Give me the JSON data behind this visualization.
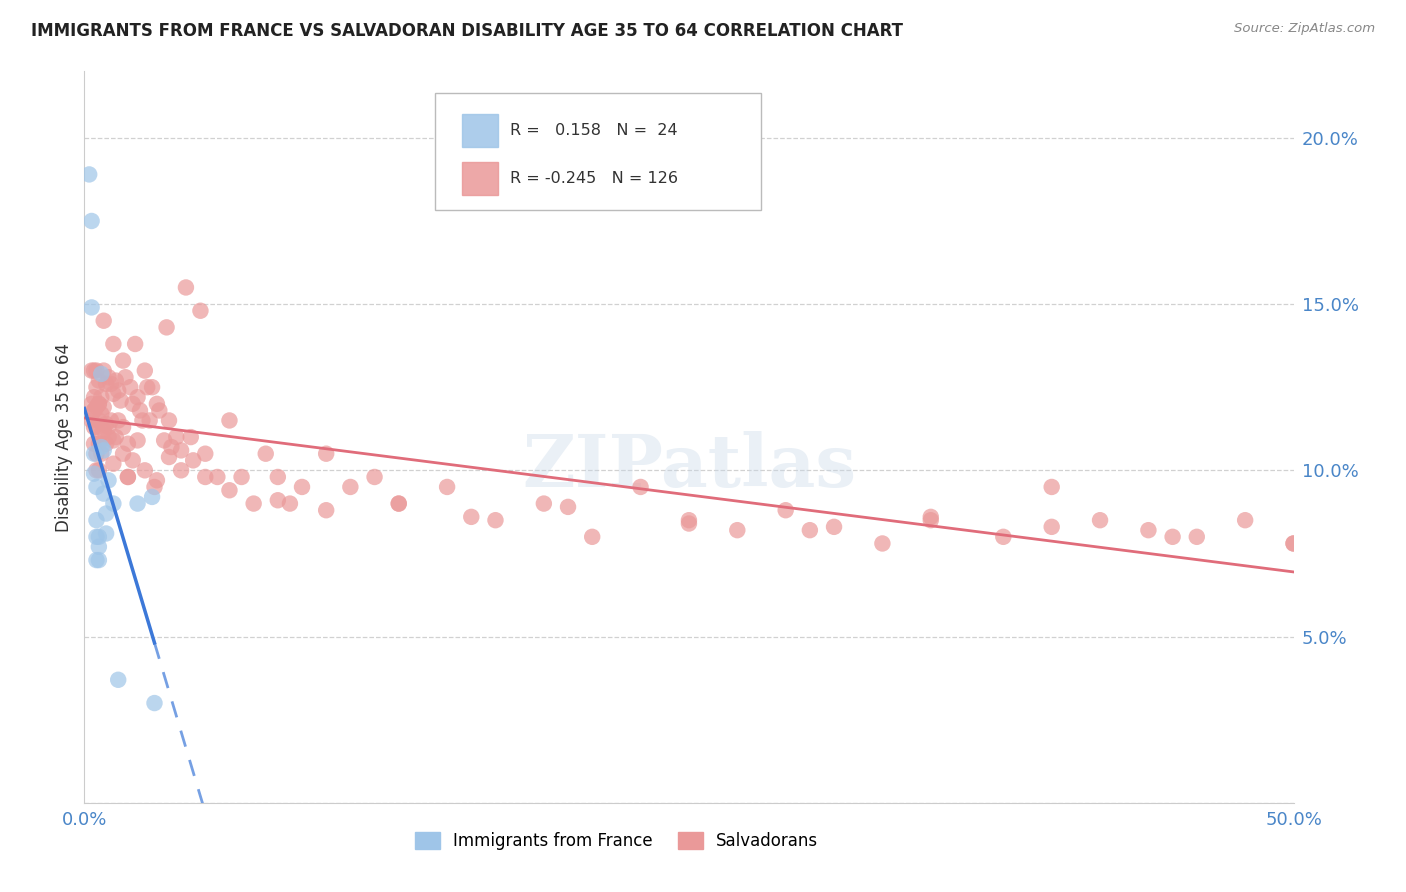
{
  "title": "IMMIGRANTS FROM FRANCE VS SALVADORAN DISABILITY AGE 35 TO 64 CORRELATION CHART",
  "source": "Source: ZipAtlas.com",
  "ylabel": "Disability Age 35 to 64",
  "xmin": 0.0,
  "xmax": 0.5,
  "ymin": 0.0,
  "ymax": 0.22,
  "ytick_vals": [
    0.0,
    0.05,
    0.1,
    0.15,
    0.2
  ],
  "ytick_labels": [
    "",
    "5.0%",
    "10.0%",
    "15.0%",
    "20.0%"
  ],
  "xtick_vals": [
    0.0,
    0.1,
    0.2,
    0.3,
    0.4,
    0.5
  ],
  "xtick_labels": [
    "0.0%",
    "",
    "",
    "",
    "",
    "50.0%"
  ],
  "legend_labels": [
    "Immigrants from France",
    "Salvadorans"
  ],
  "r_france": 0.158,
  "n_france": 24,
  "r_salvadoran": -0.245,
  "n_salvadoran": 126,
  "color_france": "#9fc5e8",
  "color_salvadoran": "#ea9999",
  "color_france_line": "#3c78d8",
  "color_salvadoran_line": "#e06c7a",
  "watermark": "ZIPatlas",
  "france_x": [
    0.002,
    0.003,
    0.003,
    0.004,
    0.004,
    0.005,
    0.005,
    0.005,
    0.005,
    0.006,
    0.006,
    0.006,
    0.007,
    0.007,
    0.008,
    0.008,
    0.009,
    0.009,
    0.01,
    0.012,
    0.014,
    0.022,
    0.028,
    0.029
  ],
  "france_y": [
    0.189,
    0.175,
    0.149,
    0.105,
    0.099,
    0.095,
    0.085,
    0.08,
    0.073,
    0.08,
    0.077,
    0.073,
    0.129,
    0.107,
    0.106,
    0.093,
    0.087,
    0.081,
    0.097,
    0.09,
    0.037,
    0.09,
    0.092,
    0.03
  ],
  "salvadoran_x": [
    0.003,
    0.003,
    0.004,
    0.004,
    0.004,
    0.004,
    0.005,
    0.005,
    0.005,
    0.005,
    0.005,
    0.006,
    0.006,
    0.006,
    0.006,
    0.007,
    0.007,
    0.007,
    0.008,
    0.008,
    0.009,
    0.009,
    0.01,
    0.01,
    0.011,
    0.011,
    0.012,
    0.012,
    0.013,
    0.013,
    0.014,
    0.015,
    0.016,
    0.016,
    0.017,
    0.018,
    0.018,
    0.019,
    0.02,
    0.021,
    0.022,
    0.022,
    0.023,
    0.024,
    0.025,
    0.026,
    0.027,
    0.028,
    0.029,
    0.03,
    0.031,
    0.033,
    0.034,
    0.035,
    0.036,
    0.038,
    0.04,
    0.042,
    0.044,
    0.045,
    0.048,
    0.05,
    0.055,
    0.06,
    0.065,
    0.07,
    0.075,
    0.08,
    0.085,
    0.09,
    0.1,
    0.11,
    0.12,
    0.13,
    0.15,
    0.17,
    0.19,
    0.21,
    0.23,
    0.25,
    0.27,
    0.29,
    0.31,
    0.33,
    0.35,
    0.38,
    0.4,
    0.42,
    0.44,
    0.46,
    0.48,
    0.5,
    0.003,
    0.004,
    0.005,
    0.006,
    0.007,
    0.008,
    0.009,
    0.01,
    0.012,
    0.014,
    0.016,
    0.018,
    0.02,
    0.025,
    0.03,
    0.035,
    0.04,
    0.05,
    0.06,
    0.08,
    0.1,
    0.13,
    0.16,
    0.2,
    0.25,
    0.3,
    0.35,
    0.4,
    0.45,
    0.5,
    0.004,
    0.006,
    0.008,
    0.012,
    0.02,
    0.03
  ],
  "salvadoran_y": [
    0.13,
    0.12,
    0.13,
    0.122,
    0.118,
    0.113,
    0.13,
    0.125,
    0.119,
    0.113,
    0.105,
    0.127,
    0.12,
    0.115,
    0.108,
    0.122,
    0.117,
    0.111,
    0.13,
    0.119,
    0.126,
    0.114,
    0.128,
    0.113,
    0.126,
    0.115,
    0.123,
    0.109,
    0.127,
    0.11,
    0.124,
    0.121,
    0.133,
    0.113,
    0.128,
    0.108,
    0.098,
    0.125,
    0.12,
    0.138,
    0.122,
    0.109,
    0.118,
    0.115,
    0.13,
    0.125,
    0.115,
    0.125,
    0.095,
    0.12,
    0.118,
    0.109,
    0.143,
    0.115,
    0.107,
    0.11,
    0.106,
    0.155,
    0.11,
    0.103,
    0.148,
    0.105,
    0.098,
    0.115,
    0.098,
    0.09,
    0.105,
    0.098,
    0.09,
    0.095,
    0.105,
    0.095,
    0.098,
    0.09,
    0.095,
    0.085,
    0.09,
    0.08,
    0.095,
    0.085,
    0.082,
    0.088,
    0.083,
    0.078,
    0.085,
    0.08,
    0.095,
    0.085,
    0.082,
    0.08,
    0.085,
    0.078,
    0.115,
    0.108,
    0.1,
    0.1,
    0.105,
    0.112,
    0.108,
    0.11,
    0.102,
    0.115,
    0.105,
    0.098,
    0.103,
    0.1,
    0.097,
    0.104,
    0.1,
    0.098,
    0.094,
    0.091,
    0.088,
    0.09,
    0.086,
    0.089,
    0.084,
    0.082,
    0.086,
    0.083,
    0.08,
    0.078,
    0.118,
    0.12,
    0.145,
    0.138,
    0.133,
    0.128
  ]
}
